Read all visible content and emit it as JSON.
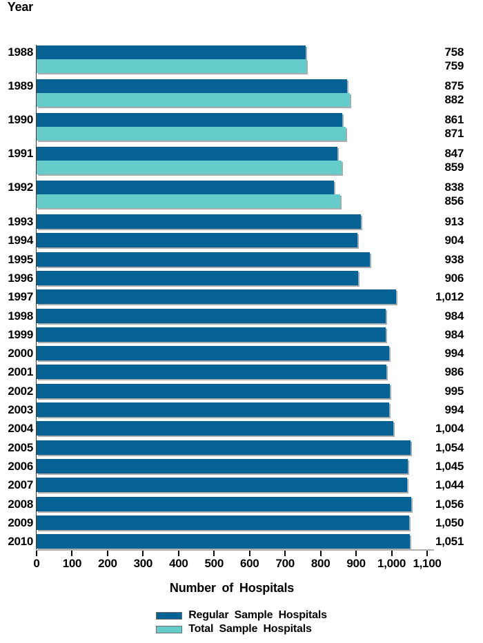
{
  "chart_data": {
    "type": "bar",
    "orientation": "horizontal",
    "y_axis_title": "Year",
    "xlabel": "Number of Hospitals",
    "xlim": [
      0,
      1100
    ],
    "x_tick_step": 100,
    "x_ticks": [
      "0",
      "100",
      "200",
      "300",
      "400",
      "500",
      "600",
      "700",
      "800",
      "900",
      "1,000",
      "1,100"
    ],
    "grid": "off",
    "legend_position": "bottom",
    "series_colors": {
      "regular": "#066295",
      "total": "#66CCCA"
    },
    "bar_shadow_color": "#ababab",
    "legend": [
      {
        "series": "regular",
        "label": "Regular Sample Hospitals",
        "color": "#066295"
      },
      {
        "series": "total",
        "label": "Total Sample Hospitals",
        "color": "#66CCCA"
      }
    ],
    "rows": [
      {
        "year": "1988",
        "bars": [
          {
            "series": "regular",
            "value": 758,
            "label": "758"
          },
          {
            "series": "total",
            "value": 759,
            "label": "759"
          }
        ]
      },
      {
        "year": "1989",
        "bars": [
          {
            "series": "regular",
            "value": 875,
            "label": "875"
          },
          {
            "series": "total",
            "value": 882,
            "label": "882"
          }
        ]
      },
      {
        "year": "1990",
        "bars": [
          {
            "series": "regular",
            "value": 861,
            "label": "861"
          },
          {
            "series": "total",
            "value": 871,
            "label": "871"
          }
        ]
      },
      {
        "year": "1991",
        "bars": [
          {
            "series": "regular",
            "value": 847,
            "label": "847"
          },
          {
            "series": "total",
            "value": 859,
            "label": "859"
          }
        ]
      },
      {
        "year": "1992",
        "bars": [
          {
            "series": "regular",
            "value": 838,
            "label": "838"
          },
          {
            "series": "total",
            "value": 856,
            "label": "856"
          }
        ]
      },
      {
        "year": "1993",
        "bars": [
          {
            "series": "regular",
            "value": 913,
            "label": "913"
          }
        ]
      },
      {
        "year": "1994",
        "bars": [
          {
            "series": "regular",
            "value": 904,
            "label": "904"
          }
        ]
      },
      {
        "year": "1995",
        "bars": [
          {
            "series": "regular",
            "value": 938,
            "label": "938"
          }
        ]
      },
      {
        "year": "1996",
        "bars": [
          {
            "series": "regular",
            "value": 906,
            "label": "906"
          }
        ]
      },
      {
        "year": "1997",
        "bars": [
          {
            "series": "regular",
            "value": 1012,
            "label": "1,012"
          }
        ]
      },
      {
        "year": "1998",
        "bars": [
          {
            "series": "regular",
            "value": 984,
            "label": "984"
          }
        ]
      },
      {
        "year": "1999",
        "bars": [
          {
            "series": "regular",
            "value": 984,
            "label": "984"
          }
        ]
      },
      {
        "year": "2000",
        "bars": [
          {
            "series": "regular",
            "value": 994,
            "label": "994"
          }
        ]
      },
      {
        "year": "2001",
        "bars": [
          {
            "series": "regular",
            "value": 986,
            "label": "986"
          }
        ]
      },
      {
        "year": "2002",
        "bars": [
          {
            "series": "regular",
            "value": 995,
            "label": "995"
          }
        ]
      },
      {
        "year": "2003",
        "bars": [
          {
            "series": "regular",
            "value": 994,
            "label": "994"
          }
        ]
      },
      {
        "year": "2004",
        "bars": [
          {
            "series": "regular",
            "value": 1004,
            "label": "1,004"
          }
        ]
      },
      {
        "year": "2005",
        "bars": [
          {
            "series": "regular",
            "value": 1054,
            "label": "1,054"
          }
        ]
      },
      {
        "year": "2006",
        "bars": [
          {
            "series": "regular",
            "value": 1045,
            "label": "1,045"
          }
        ]
      },
      {
        "year": "2007",
        "bars": [
          {
            "series": "regular",
            "value": 1044,
            "label": "1,044"
          }
        ]
      },
      {
        "year": "2008",
        "bars": [
          {
            "series": "regular",
            "value": 1056,
            "label": "1,056"
          }
        ]
      },
      {
        "year": "2009",
        "bars": [
          {
            "series": "regular",
            "value": 1050,
            "label": "1,050"
          }
        ]
      },
      {
        "year": "2010",
        "bars": [
          {
            "series": "regular",
            "value": 1051,
            "label": "1,051"
          }
        ]
      }
    ]
  }
}
